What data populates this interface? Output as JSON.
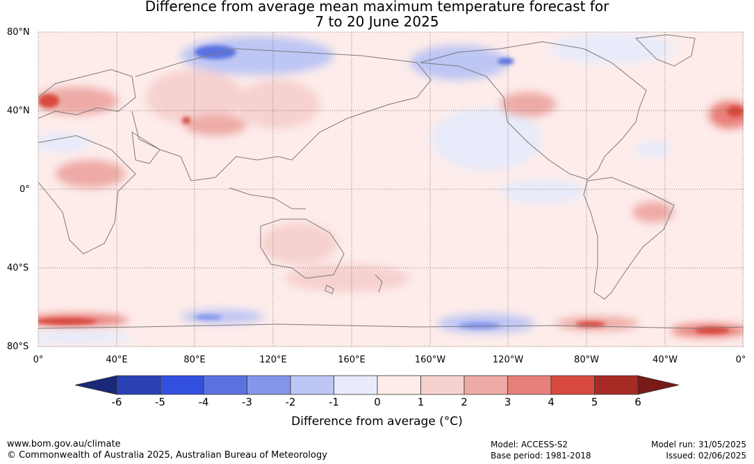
{
  "title": {
    "line1": "Difference from average mean maximum temperature forecast for",
    "line2": "7 to 20 June 2025"
  },
  "map": {
    "lat_labels": [
      "80°N",
      "40°N",
      "0°",
      "40°S",
      "80°S"
    ],
    "lon_labels": [
      "0°",
      "40°E",
      "80°E",
      "120°E",
      "160°E",
      "160°W",
      "120°W",
      "80°W",
      "40°W",
      "0°"
    ],
    "projection": "equirectangular",
    "gridlines": "dotted"
  },
  "colorbar": {
    "ticks": [
      "-6",
      "-5",
      "-4",
      "-3",
      "-2",
      "-1",
      "0",
      "1",
      "2",
      "3",
      "4",
      "5",
      "6"
    ],
    "colors": [
      "#1a2878",
      "#2a41b4",
      "#324fe0",
      "#5a72e0",
      "#8496ec",
      "#bec6f4",
      "#e8ebfa",
      "#fdecea",
      "#f6d1cf",
      "#eeaaa6",
      "#e8807a",
      "#d84a3e",
      "#a82a24",
      "#781a17"
    ],
    "label": "Difference from average (°C)"
  },
  "footer": {
    "website": "www.bom.gov.au/climate",
    "copyright": "© Commonwealth of Australia 2025, Australian Bureau of Meteorology",
    "model": "Model: ACCESS-S2",
    "base_period": "Base period: 1981-2018",
    "model_run": "Model run: 31/05/2025",
    "issued": "Issued: 02/06/2025"
  }
}
